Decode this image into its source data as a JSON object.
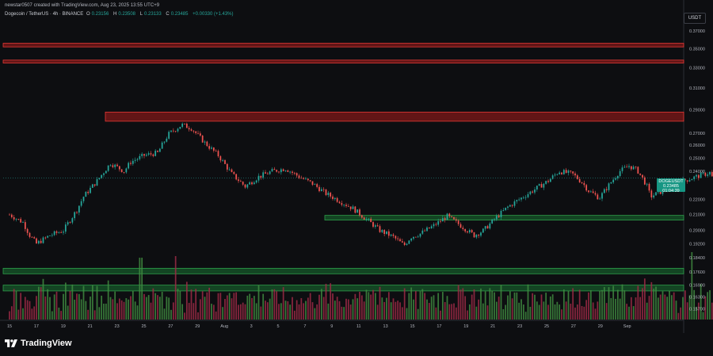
{
  "header": {
    "author_line": "newstar0507 created with TradingView.com, Aug 23, 2025 13:55 UTC+9",
    "symbol_line": "Dogecoin / TetherUS · 4h · BINANCE",
    "ohlc": [
      {
        "label": "O",
        "value": "0.23156"
      },
      {
        "label": "H",
        "value": "0.23508"
      },
      {
        "label": "L",
        "value": "0.23133"
      },
      {
        "label": "C",
        "value": "0.23485"
      }
    ],
    "change": "+0.00330 (+1.43%)"
  },
  "currency_button": "USDT",
  "price_label": {
    "symbol": "DOGEUSDT",
    "price": "0.23485",
    "countdown": "01:04:39"
  },
  "brand": {
    "name": "TradingView"
  },
  "colors": {
    "background": "#0d0e11",
    "up": "#26a69a",
    "down": "#ef5350",
    "resistance_zone": "#b71c1c",
    "support_zone": "#1b8a3a",
    "volume_up": "#3f8a3f",
    "volume_down": "#9c2a45"
  },
  "chart_data": {
    "type": "candlestick",
    "interval": "4h",
    "y_axis": {
      "scale": "log",
      "ticks": [
        "0.37000",
        "0.35000",
        "0.33000",
        "0.31000",
        "0.29000",
        "0.27000",
        "0.26000",
        "0.25000",
        "0.24000",
        "0.22000",
        "0.21000",
        "0.20000",
        "0.19200",
        "0.18400",
        "0.17600",
        "0.16900",
        "0.16300",
        "0.15700"
      ],
      "ylim": [
        0.152,
        0.395
      ]
    },
    "x_axis": {
      "ticks": [
        "15",
        "17",
        "19",
        "21",
        "23",
        "25",
        "27",
        "29",
        "Aug",
        "3",
        "5",
        "7",
        "9",
        "11",
        "13",
        "15",
        "17",
        "19",
        "21",
        "23",
        "25",
        "27",
        "29",
        "Sep"
      ]
    },
    "resistance_zones": [
      [
        0.352,
        0.356
      ],
      [
        0.335,
        0.338
      ],
      [
        0.28,
        0.288
      ]
    ],
    "support_zones": [
      [
        0.2065,
        0.2095
      ],
      [
        0.175,
        0.178
      ],
      [
        0.166,
        0.169
      ]
    ],
    "close_path": [
      [
        0.0,
        0.21
      ],
      [
        1.0,
        0.205
      ],
      [
        1.5,
        0.197
      ],
      [
        2.0,
        0.192
      ],
      [
        3.0,
        0.197
      ],
      [
        4.0,
        0.2
      ],
      [
        5.0,
        0.213
      ],
      [
        5.5,
        0.222
      ],
      [
        6.5,
        0.233
      ],
      [
        7.5,
        0.246
      ],
      [
        8.5,
        0.24
      ],
      [
        9.0,
        0.247
      ],
      [
        10.0,
        0.252
      ],
      [
        11.0,
        0.254
      ],
      [
        11.8,
        0.269
      ],
      [
        12.8,
        0.277
      ],
      [
        13.5,
        0.274
      ],
      [
        14.5,
        0.262
      ],
      [
        15.5,
        0.252
      ],
      [
        16.5,
        0.238
      ],
      [
        17.5,
        0.229
      ],
      [
        18.5,
        0.236
      ],
      [
        19.5,
        0.24
      ],
      [
        20.5,
        0.242
      ],
      [
        21.5,
        0.236
      ],
      [
        22.5,
        0.231
      ],
      [
        23.5,
        0.224
      ],
      [
        24.5,
        0.219
      ],
      [
        25.5,
        0.214
      ],
      [
        26.5,
        0.207
      ],
      [
        27.5,
        0.2
      ],
      [
        28.5,
        0.196
      ],
      [
        29.3,
        0.191
      ],
      [
        29.8,
        0.196
      ],
      [
        30.5,
        0.198
      ],
      [
        31.5,
        0.203
      ],
      [
        32.5,
        0.209
      ],
      [
        33.5,
        0.203
      ],
      [
        34.5,
        0.197
      ],
      [
        35.2,
        0.2
      ],
      [
        36.0,
        0.207
      ],
      [
        37.0,
        0.215
      ],
      [
        38.0,
        0.221
      ],
      [
        39.0,
        0.227
      ],
      [
        40.0,
        0.233
      ],
      [
        40.8,
        0.24
      ],
      [
        41.8,
        0.238
      ],
      [
        42.5,
        0.232
      ],
      [
        43.0,
        0.226
      ],
      [
        43.8,
        0.221
      ],
      [
        44.5,
        0.23
      ],
      [
        45.3,
        0.24
      ],
      [
        46.0,
        0.244
      ],
      [
        46.6,
        0.241
      ],
      [
        47.3,
        0.23
      ],
      [
        47.6,
        0.222
      ],
      [
        48.5,
        0.226
      ],
      [
        49.2,
        0.23
      ],
      [
        50.0,
        0.233
      ],
      [
        51.0,
        0.236
      ],
      [
        52.0,
        0.239
      ],
      [
        52.5,
        0.229
      ],
      [
        53.0,
        0.225
      ],
      [
        54.0,
        0.222
      ],
      [
        55.0,
        0.22
      ],
      [
        56.0,
        0.214
      ],
      [
        57.0,
        0.212
      ],
      [
        58.0,
        0.217
      ],
      [
        59.0,
        0.222
      ],
      [
        59.8,
        0.217
      ],
      [
        60.5,
        0.214
      ],
      [
        60.9,
        0.216
      ],
      [
        61.3,
        0.229
      ],
      [
        61.7,
        0.24
      ],
      [
        62.0,
        0.241
      ],
      [
        62.4,
        0.235
      ]
    ],
    "seed": 7
  }
}
